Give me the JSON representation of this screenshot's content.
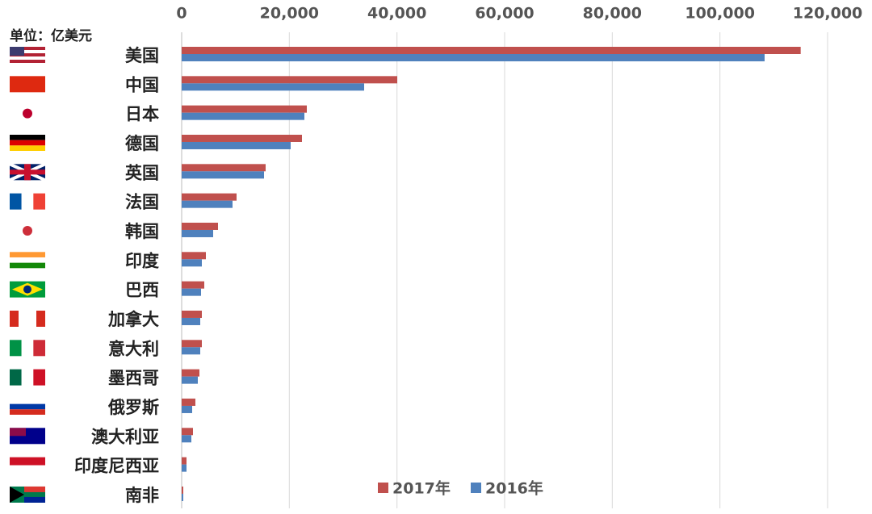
{
  "chart_data": {
    "type": "bar",
    "orientation": "horizontal",
    "unit_label": "单位：亿美元",
    "categories": [
      "美国",
      "中国",
      "日本",
      "德国",
      "英国",
      "法国",
      "韩国",
      "印度",
      "巴西",
      "加拿大",
      "意大利",
      "墨西哥",
      "俄罗斯",
      "澳大利亚",
      "印度尼西亚",
      "南非"
    ],
    "series": [
      {
        "name": "2017年",
        "color": "#c0504d",
        "values": [
          115000,
          40050,
          23250,
          22350,
          15600,
          10200,
          6750,
          4500,
          4200,
          3750,
          3750,
          3300,
          2550,
          2100,
          900,
          300
        ]
      },
      {
        "name": "2016年",
        "color": "#4f81bd",
        "values": [
          108300,
          33900,
          22800,
          20250,
          15300,
          9450,
          5850,
          3750,
          3600,
          3450,
          3450,
          3000,
          1950,
          1800,
          900,
          300
        ]
      }
    ],
    "xlim": [
      0,
      120000
    ],
    "xticks": [
      0,
      {
        "value": 20000,
        "label": "20,000"
      },
      {
        "value": 40000,
        "label": "40,000"
      },
      {
        "value": 60000,
        "label": "60,000"
      },
      {
        "value": 80000,
        "label": "80,000"
      },
      {
        "value": 100000,
        "label": "100,000"
      },
      {
        "value": 120000,
        "label": "120,000"
      }
    ],
    "grid": true,
    "legend": "bottom"
  }
}
